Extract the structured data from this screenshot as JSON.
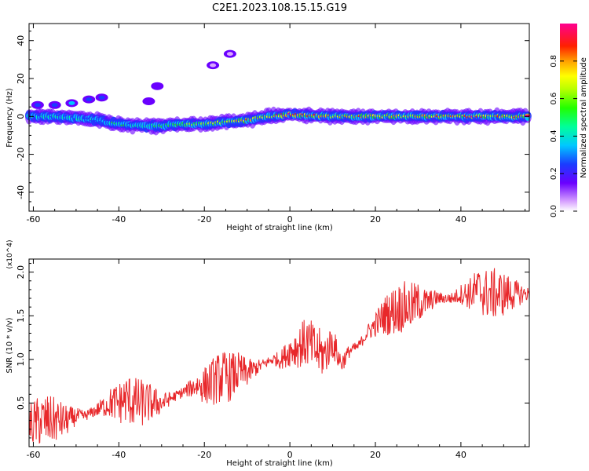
{
  "title": "C2E1.2023.108.15.15.G19",
  "chart_data": [
    {
      "type": "heatmap",
      "xlabel": "Height of straight line (km)",
      "ylabel": "Frequency (Hz)",
      "xlim": [
        -61,
        56
      ],
      "ylim": [
        -50,
        49
      ],
      "xticks": [
        -60,
        -40,
        -20,
        0,
        20,
        40
      ],
      "yticks": [
        -40,
        -20,
        0,
        20,
        40
      ],
      "colorbar": {
        "label": "Normalized spectral amplitude",
        "range": [
          0,
          1
        ],
        "ticks": [
          0.0,
          0.2,
          0.4,
          0.6,
          0.8
        ],
        "colormap": "rainbow (white-violet-blue-cyan-green-yellow-orange-red-magenta)"
      },
      "ridge": {
        "description": "main spectral ridge frequency vs height",
        "x": [
          -61,
          -55,
          -50,
          -45,
          -40,
          -35,
          -30,
          -25,
          -20,
          -15,
          -10,
          -5,
          0,
          10,
          20,
          30,
          40,
          50,
          56
        ],
        "y": [
          0,
          0,
          -1,
          -2,
          -4,
          -5,
          -5,
          -4,
          -4,
          -3,
          -2,
          0,
          1,
          0,
          0,
          0,
          0,
          0,
          0
        ],
        "amplitude": [
          0.4,
          0.45,
          0.4,
          0.35,
          0.5,
          0.45,
          0.5,
          0.6,
          0.7,
          0.7,
          0.85,
          0.75,
          0.95,
          0.8,
          0.85,
          0.8,
          0.9,
          0.85,
          0.9
        ]
      },
      "secondary_points": [
        {
          "x": -59,
          "y": 6,
          "amplitude": 0.2
        },
        {
          "x": -55,
          "y": 6,
          "amplitude": 0.25
        },
        {
          "x": -51,
          "y": 7,
          "amplitude": 0.3
        },
        {
          "x": -47,
          "y": 9,
          "amplitude": 0.25
        },
        {
          "x": -44,
          "y": 10,
          "amplitude": 0.2
        },
        {
          "x": -33,
          "y": 8,
          "amplitude": 0.1
        },
        {
          "x": -31,
          "y": 16,
          "amplitude": 0.15
        },
        {
          "x": -18,
          "y": 27,
          "amplitude": 0.05
        },
        {
          "x": -14,
          "y": 33,
          "amplitude": 0.05
        }
      ]
    },
    {
      "type": "line",
      "xlabel": "Height of straight line (km)",
      "ylabel": "SNR (10 * v/v)",
      "y_multiplier": "(x10^4)",
      "xlim": [
        -61,
        56
      ],
      "ylim": [
        0,
        2.15
      ],
      "xticks": [
        -60,
        -40,
        -20,
        0,
        20,
        40
      ],
      "yticks": [
        0.5,
        1.0,
        1.5,
        2.0
      ],
      "color": "#e8282b",
      "series": [
        {
          "x": [
            -61,
            -58,
            -55,
            -52,
            -50,
            -48,
            -46,
            -44,
            -42,
            -40,
            -38,
            -36,
            -34,
            -32,
            -30,
            -28,
            -26,
            -24,
            -22,
            -20,
            -18,
            -16,
            -14,
            -12,
            -10,
            -8,
            -6,
            -4,
            -2,
            0,
            2,
            4,
            6,
            8,
            10,
            12,
            14,
            16,
            18,
            20,
            22,
            24,
            26,
            28,
            30,
            32,
            34,
            36,
            38,
            40,
            42,
            44,
            46,
            48,
            50,
            52,
            54,
            56
          ],
          "values": [
            0.25,
            0.3,
            0.3,
            0.3,
            0.35,
            0.35,
            0.4,
            0.45,
            0.5,
            0.5,
            0.55,
            0.5,
            0.5,
            0.5,
            0.5,
            0.55,
            0.6,
            0.65,
            0.7,
            0.7,
            0.75,
            0.8,
            0.8,
            0.85,
            0.85,
            0.9,
            0.95,
            1.0,
            1.0,
            1.1,
            1.15,
            1.2,
            1.1,
            1.05,
            1.2,
            0.95,
            1.1,
            1.15,
            1.3,
            1.4,
            1.5,
            1.55,
            1.6,
            1.6,
            1.65,
            1.65,
            1.7,
            1.7,
            1.7,
            1.75,
            1.75,
            1.8,
            1.75,
            1.75,
            1.75,
            1.75,
            1.75,
            1.75
          ]
        }
      ]
    }
  ]
}
